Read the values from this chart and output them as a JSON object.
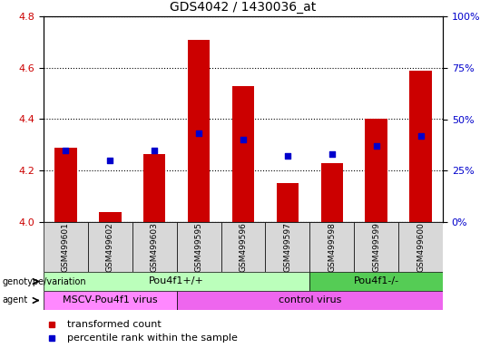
{
  "title": "GDS4042 / 1430036_at",
  "samples": [
    "GSM499601",
    "GSM499602",
    "GSM499603",
    "GSM499595",
    "GSM499596",
    "GSM499597",
    "GSM499598",
    "GSM499599",
    "GSM499600"
  ],
  "transformed_counts": [
    4.29,
    4.04,
    4.265,
    4.71,
    4.53,
    4.15,
    4.23,
    4.4,
    4.59
  ],
  "percentile_values": [
    35,
    30,
    35,
    43,
    40,
    32,
    33,
    37,
    42
  ],
  "ylim_left": [
    4.0,
    4.8
  ],
  "ylim_right": [
    0,
    100
  ],
  "yticks_left": [
    4.0,
    4.2,
    4.4,
    4.6,
    4.8
  ],
  "yticks_right": [
    0,
    25,
    50,
    75,
    100
  ],
  "bar_color": "#cc0000",
  "dot_color": "#0000cc",
  "bar_bottom": 4.0,
  "genotype_groups": [
    {
      "label": "Pou4f1+/+",
      "start": 0,
      "end": 6,
      "color": "#bbffbb"
    },
    {
      "label": "Pou4f1-/-",
      "start": 6,
      "end": 9,
      "color": "#55cc55"
    }
  ],
  "agent_groups": [
    {
      "label": "MSCV-Pou4f1 virus",
      "start": 0,
      "end": 3,
      "color": "#ff88ff"
    },
    {
      "label": "control virus",
      "start": 3,
      "end": 9,
      "color": "#ee66ee"
    }
  ],
  "legend_items": [
    {
      "label": "transformed count",
      "color": "#cc0000"
    },
    {
      "label": "percentile rank within the sample",
      "color": "#0000cc"
    }
  ],
  "background_color": "#ffffff",
  "tick_label_color_left": "#cc0000",
  "tick_label_color_right": "#0000cc",
  "xlabel_area_color": "#d8d8d8"
}
